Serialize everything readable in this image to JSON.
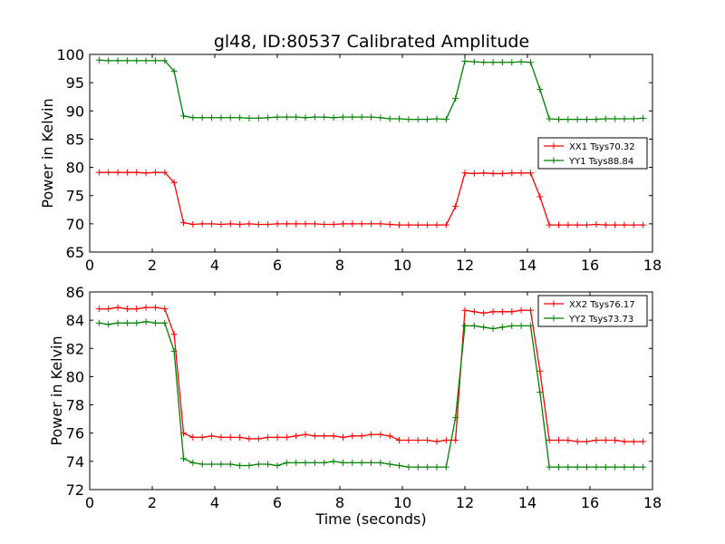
{
  "title": "gl48, ID:80537 Calibrated Amplitude",
  "chart_data": [
    {
      "type": "line",
      "title": "gl48, ID:80537 Calibrated Amplitude",
      "xlabel": "",
      "ylabel": "Power in Kelvin",
      "xlim": [
        0,
        18
      ],
      "ylim": [
        65,
        100
      ],
      "xticks": [
        "0",
        "2",
        "4",
        "6",
        "8",
        "10",
        "12",
        "14",
        "16",
        "18"
      ],
      "yticks": [
        "65",
        "70",
        "75",
        "80",
        "85",
        "90",
        "95",
        "100"
      ],
      "grid": false,
      "legend_position": "right",
      "x": [
        0.3,
        0.6,
        0.9,
        1.2,
        1.5,
        1.8,
        2.1,
        2.4,
        2.7,
        3.0,
        3.3,
        3.6,
        3.9,
        4.2,
        4.5,
        4.8,
        5.1,
        5.4,
        5.7,
        6.0,
        6.3,
        6.6,
        6.9,
        7.2,
        7.5,
        7.8,
        8.1,
        8.4,
        8.7,
        9.0,
        9.3,
        9.6,
        9.9,
        10.2,
        10.5,
        10.8,
        11.1,
        11.4,
        11.7,
        12.0,
        12.3,
        12.6,
        12.9,
        13.2,
        13.5,
        13.8,
        14.1,
        14.4,
        14.7,
        15.0,
        15.3,
        15.6,
        15.9,
        16.2,
        16.5,
        16.8,
        17.1,
        17.4,
        17.7
      ],
      "series": [
        {
          "name": "XX1 Tsys70.32",
          "color": "#ff0000",
          "values": [
            79.1,
            79.1,
            79.1,
            79.1,
            79.1,
            79.0,
            79.1,
            79.1,
            77.3,
            70.2,
            69.9,
            70.0,
            70.0,
            69.9,
            70.0,
            69.9,
            70.0,
            69.9,
            69.9,
            70.0,
            70.0,
            70.0,
            70.0,
            70.0,
            69.9,
            69.9,
            70.0,
            70.0,
            70.0,
            70.0,
            70.0,
            69.9,
            69.8,
            69.8,
            69.8,
            69.8,
            69.8,
            69.8,
            73.1,
            79.0,
            78.9,
            79.0,
            78.9,
            78.9,
            79.0,
            79.0,
            79.0,
            74.8,
            69.8,
            69.8,
            69.8,
            69.8,
            69.8,
            69.9,
            69.8,
            69.8,
            69.8,
            69.8,
            69.8
          ]
        },
        {
          "name": "YY1 Tsys88.84",
          "color": "#008000",
          "values": [
            99.0,
            98.9,
            98.9,
            98.9,
            98.9,
            98.9,
            98.9,
            98.9,
            97.0,
            89.1,
            88.8,
            88.8,
            88.8,
            88.8,
            88.8,
            88.8,
            88.7,
            88.7,
            88.8,
            88.9,
            88.9,
            88.9,
            88.8,
            88.9,
            88.9,
            88.8,
            88.9,
            88.9,
            88.9,
            88.9,
            88.8,
            88.6,
            88.6,
            88.5,
            88.5,
            88.5,
            88.6,
            88.5,
            92.2,
            98.8,
            98.7,
            98.6,
            98.6,
            98.6,
            98.6,
            98.7,
            98.6,
            93.8,
            88.6,
            88.5,
            88.5,
            88.5,
            88.5,
            88.5,
            88.6,
            88.6,
            88.6,
            88.6,
            88.7
          ]
        }
      ]
    },
    {
      "type": "line",
      "title": "",
      "xlabel": "Time (seconds)",
      "ylabel": "Power in Kelvin",
      "xlim": [
        0,
        18
      ],
      "ylim": [
        72,
        86
      ],
      "xticks": [
        "0",
        "2",
        "4",
        "6",
        "8",
        "10",
        "12",
        "14",
        "16",
        "18"
      ],
      "yticks": [
        "72",
        "74",
        "76",
        "78",
        "80",
        "82",
        "84",
        "86"
      ],
      "grid": false,
      "legend_position": "top-right",
      "x": [
        0.3,
        0.6,
        0.9,
        1.2,
        1.5,
        1.8,
        2.1,
        2.4,
        2.7,
        3.0,
        3.3,
        3.6,
        3.9,
        4.2,
        4.5,
        4.8,
        5.1,
        5.4,
        5.7,
        6.0,
        6.3,
        6.6,
        6.9,
        7.2,
        7.5,
        7.8,
        8.1,
        8.4,
        8.7,
        9.0,
        9.3,
        9.6,
        9.9,
        10.2,
        10.5,
        10.8,
        11.1,
        11.4,
        11.7,
        12.0,
        12.3,
        12.6,
        12.9,
        13.2,
        13.5,
        13.8,
        14.1,
        14.4,
        14.7,
        15.0,
        15.3,
        15.6,
        15.9,
        16.2,
        16.5,
        16.8,
        17.1,
        17.4,
        17.7
      ],
      "series": [
        {
          "name": "XX2 Tsys76.17",
          "color": "#ff0000",
          "values": [
            84.8,
            84.8,
            84.9,
            84.8,
            84.8,
            84.9,
            84.9,
            84.8,
            83.0,
            76.0,
            75.7,
            75.7,
            75.8,
            75.7,
            75.7,
            75.7,
            75.6,
            75.6,
            75.7,
            75.7,
            75.7,
            75.8,
            75.9,
            75.8,
            75.8,
            75.8,
            75.7,
            75.8,
            75.8,
            75.9,
            75.9,
            75.8,
            75.5,
            75.5,
            75.5,
            75.5,
            75.4,
            75.5,
            75.5,
            84.7,
            84.6,
            84.5,
            84.6,
            84.6,
            84.6,
            84.7,
            84.7,
            80.4,
            75.5,
            75.5,
            75.5,
            75.4,
            75.4,
            75.5,
            75.5,
            75.5,
            75.4,
            75.4,
            75.4
          ]
        },
        {
          "name": "YY2 Tsys73.73",
          "color": "#008000",
          "values": [
            83.8,
            83.7,
            83.8,
            83.8,
            83.8,
            83.9,
            83.8,
            83.8,
            81.8,
            74.2,
            73.9,
            73.8,
            73.8,
            73.8,
            73.8,
            73.7,
            73.7,
            73.8,
            73.8,
            73.7,
            73.9,
            73.9,
            73.9,
            73.9,
            73.9,
            74.0,
            73.9,
            73.9,
            73.9,
            73.9,
            73.9,
            73.8,
            73.7,
            73.6,
            73.6,
            73.6,
            73.6,
            73.6,
            77.1,
            83.6,
            83.6,
            83.5,
            83.4,
            83.5,
            83.6,
            83.6,
            83.6,
            78.9,
            73.6,
            73.6,
            73.6,
            73.6,
            73.6,
            73.6,
            73.6,
            73.6,
            73.6,
            73.6,
            73.6
          ]
        }
      ]
    }
  ]
}
